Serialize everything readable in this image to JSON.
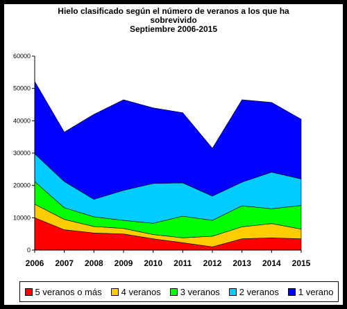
{
  "chart_data": {
    "type": "area",
    "stacked": true,
    "title": "Hielo clasificado según el número de veranos a los que ha sobrevivido",
    "title_lines": [
      "Hielo clasificado según el número de veranos a los que ha",
      "sobrevivido",
      "Septiembre 2006-2015"
    ],
    "xlabel": "",
    "ylabel": "",
    "ylim": [
      0,
      60000
    ],
    "yticks": [
      "0",
      "10000",
      "20000",
      "30000",
      "40000",
      "50000",
      "60000"
    ],
    "x": [
      "2006",
      "2007",
      "2008",
      "2009",
      "2010",
      "2011",
      "2012",
      "2013",
      "2014",
      "2015"
    ],
    "grid": false,
    "legend_position": "bottom",
    "series": [
      {
        "name": "5 veranos o más",
        "color": "#ff0000",
        "values": [
          10000,
          6300,
          5300,
          5000,
          3500,
          2300,
          1000,
          3500,
          3800,
          3500
        ]
      },
      {
        "name": "4 veranos",
        "color": "#ffcc00",
        "values": [
          4200,
          3200,
          2000,
          1700,
          1300,
          1500,
          3300,
          3700,
          4400,
          3000
        ]
      },
      {
        "name": "3 veranos",
        "color": "#00ff00",
        "values": [
          7000,
          3600,
          3000,
          2500,
          3500,
          6700,
          4900,
          6500,
          4600,
          7300
        ]
      },
      {
        "name": "2 veranos",
        "color": "#00ccff",
        "values": [
          8600,
          8100,
          5400,
          9300,
          12300,
          10300,
          7500,
          7300,
          11300,
          8200
        ]
      },
      {
        "name": "1 verano",
        "color": "#0000ff",
        "values": [
          22400,
          15300,
          26300,
          28000,
          23400,
          21700,
          14800,
          25500,
          21600,
          18500
        ]
      }
    ]
  }
}
